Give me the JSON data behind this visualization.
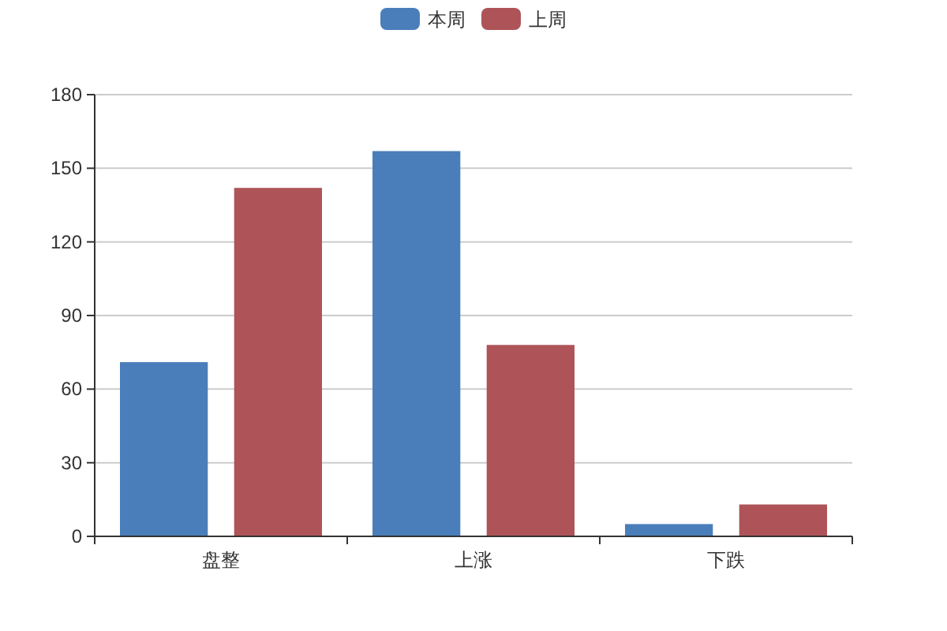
{
  "chart_data": {
    "type": "bar",
    "categories": [
      "盘整",
      "上涨",
      "下跌"
    ],
    "series": [
      {
        "name": "本周",
        "color": "#4a7ebb",
        "values": [
          71,
          157,
          5
        ]
      },
      {
        "name": "上周",
        "color": "#ae5458",
        "values": [
          142,
          78,
          13
        ]
      }
    ],
    "ylim": [
      0,
      180
    ],
    "yticks": [
      0,
      30,
      60,
      90,
      120,
      150,
      180
    ],
    "grid": "y",
    "legend": "top"
  }
}
